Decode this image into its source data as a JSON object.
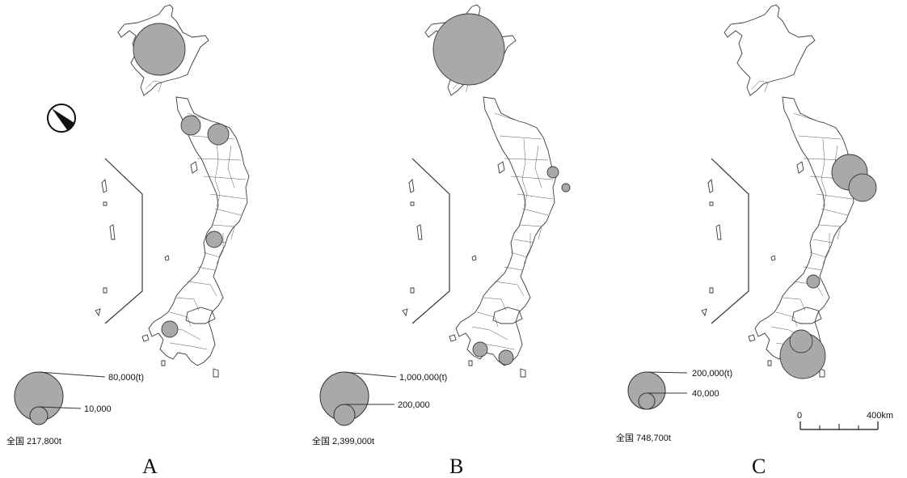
{
  "panels": [
    {
      "letter": "A",
      "legend_max": "80,000(t)",
      "legend_min": "10,000",
      "total": "全国 217,800t"
    },
    {
      "letter": "B",
      "legend_max": "1,000,000(t)",
      "legend_min": "200,000",
      "total": "全国 2,399,000t"
    },
    {
      "letter": "C",
      "legend_max": "200,000(t)",
      "legend_min": "40,000",
      "total": "全国 748,700t"
    }
  ],
  "scale": {
    "zero": "0",
    "end": "400km"
  },
  "colors": {
    "bubble": "#a9a9a9",
    "line": "#3a3a3a"
  },
  "icons": {
    "north_arrow": "north-arrow-icon"
  }
}
